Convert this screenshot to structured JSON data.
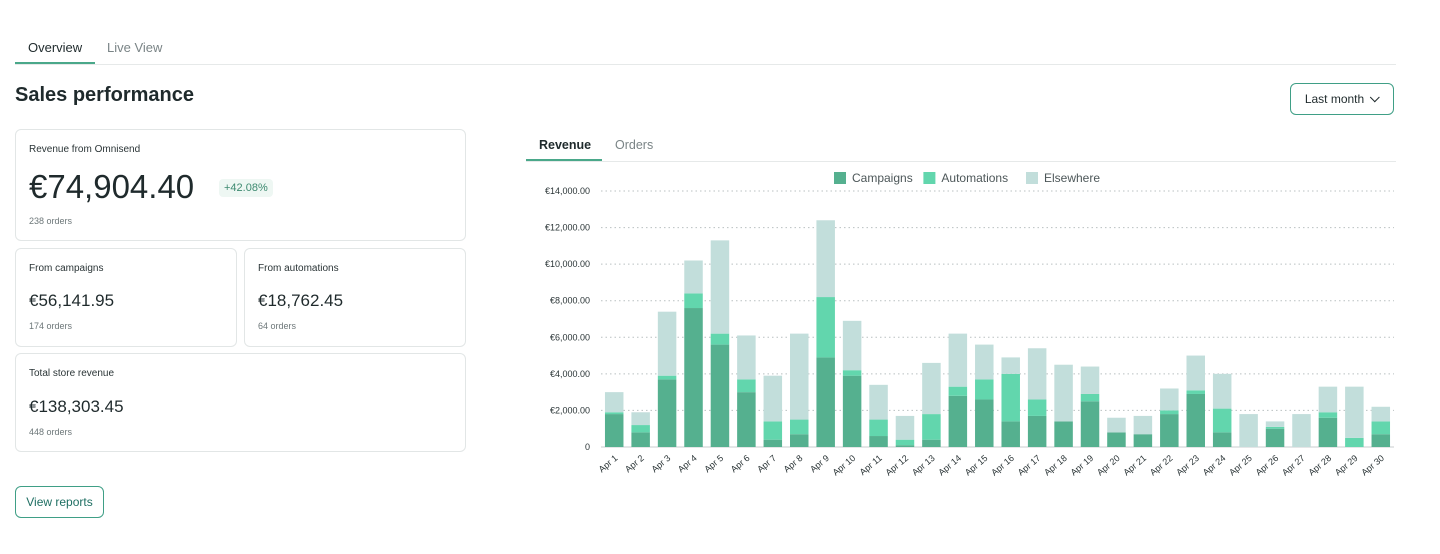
{
  "top_tabs": {
    "overview": "Overview",
    "live_view": "Live View"
  },
  "page_title": "Sales performance",
  "period_select": {
    "value": "Last month"
  },
  "cards": {
    "revenue": {
      "label": "Revenue from Omnisend",
      "value": "€74,904.40",
      "change": "+42.08%",
      "orders": "238 orders"
    },
    "campaigns": {
      "label": "From campaigns",
      "value": "€56,141.95",
      "orders": "174 orders"
    },
    "automations": {
      "label": "From automations",
      "value": "€18,762.45",
      "orders": "64 orders"
    },
    "total": {
      "label": "Total store revenue",
      "value": "€138,303.45",
      "orders": "448 orders"
    }
  },
  "view_reports_label": "View reports",
  "chart_tabs": {
    "revenue": "Revenue",
    "orders": "Orders"
  },
  "colors": {
    "campaigns": "#55b08f",
    "automations": "#62d6ad",
    "elsewhere": "#c2dedb",
    "accent": "#3f9f86"
  },
  "chart_data": {
    "type": "bar",
    "stacked": true,
    "categories": [
      "Apr 1",
      "Apr 2",
      "Apr 3",
      "Apr 4",
      "Apr 5",
      "Apr 6",
      "Apr 7",
      "Apr 8",
      "Apr 9",
      "Apr 10",
      "Apr 11",
      "Apr 12",
      "Apr 13",
      "Apr 14",
      "Apr 15",
      "Apr 16",
      "Apr 17",
      "Apr 18",
      "Apr 19",
      "Apr 20",
      "Apr 21",
      "Apr 22",
      "Apr 23",
      "Apr 24",
      "Apr 25",
      "Apr 26",
      "Apr 27",
      "Apr 28",
      "Apr 29",
      "Apr 30"
    ],
    "series": [
      {
        "name": "Campaigns",
        "values": [
          1800,
          800,
          3700,
          7600,
          5600,
          3000,
          400,
          700,
          4900,
          3900,
          600,
          100,
          400,
          2800,
          2600,
          1400,
          1700,
          1400,
          2500,
          800,
          700,
          1800,
          2900,
          800,
          0,
          1000,
          0,
          1600,
          0,
          700
        ]
      },
      {
        "name": "Automations",
        "values": [
          100,
          400,
          200,
          800,
          600,
          700,
          1000,
          800,
          3300,
          300,
          900,
          300,
          1400,
          500,
          1100,
          2600,
          900,
          0,
          400,
          0,
          0,
          200,
          200,
          1300,
          0,
          100,
          0,
          300,
          500,
          700
        ]
      },
      {
        "name": "Elsewhere",
        "values": [
          1100,
          700,
          3500,
          1800,
          5100,
          2400,
          2500,
          4700,
          4200,
          2700,
          1900,
          1300,
          2800,
          2900,
          1900,
          900,
          2800,
          3100,
          1500,
          800,
          1000,
          1200,
          1900,
          1900,
          1800,
          300,
          1800,
          1400,
          2800,
          800
        ]
      }
    ],
    "yticks": [
      "€14,000.00",
      "€12,000.00",
      "€10,000.00",
      "€8,000.00",
      "€6,000.00",
      "€4,000.00",
      "€2,000.00",
      "0"
    ],
    "ylim": [
      0,
      14000
    ],
    "grid": true,
    "legend_position": "top-center"
  }
}
